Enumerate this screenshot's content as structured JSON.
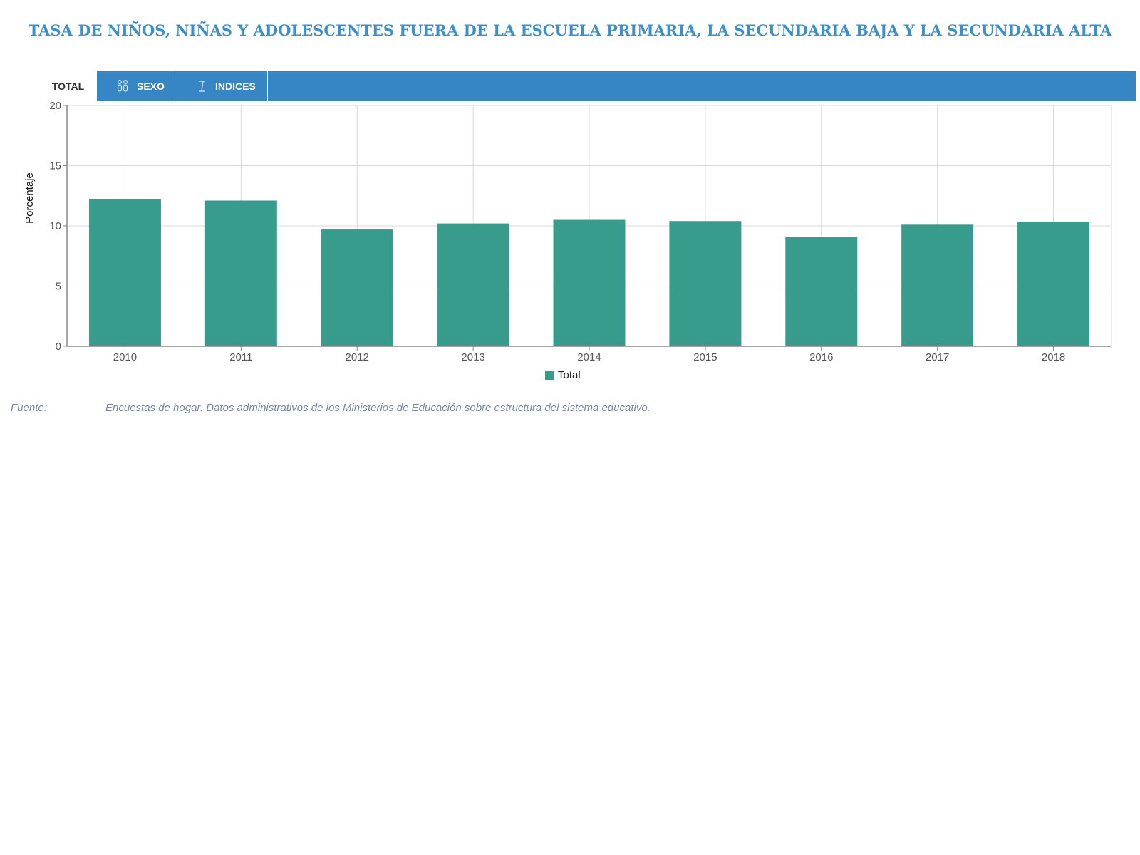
{
  "page": {
    "title": "TASA DE NIÑOS, NIÑAS Y ADOLESCENTES FUERA DE LA ESCUELA PRIMARIA, LA SECUNDARIA BAJA Y LA SECUNDARIA ALTA"
  },
  "tabs": {
    "total_label": "TOTAL",
    "sexo_label": "SEXO",
    "indices_label": "INDICES",
    "sexo_icon": "gender-icon",
    "indices_icon": "index-icon",
    "active": "TOTAL"
  },
  "colors": {
    "title": "#3d8fcb",
    "tabbar": "#3685c5",
    "bar": "#379c8b",
    "grid": "#d9d9d9",
    "axis": "#888888",
    "source": "#7a86a8"
  },
  "chart_data": {
    "type": "bar",
    "categories": [
      "2010",
      "2011",
      "2012",
      "2013",
      "2014",
      "2015",
      "2016",
      "2017",
      "2018"
    ],
    "series": [
      {
        "name": "Total",
        "values": [
          12.2,
          12.1,
          9.7,
          10.2,
          10.5,
          10.4,
          9.1,
          10.1,
          10.3
        ]
      }
    ],
    "ylabel": "Porcentaje",
    "xlabel": "",
    "ylim": [
      0,
      20
    ],
    "yticks": [
      "0",
      "5",
      "10",
      "15",
      "20"
    ],
    "grid": true,
    "legend_position": "bottom-center"
  },
  "legend": {
    "label": "Total"
  },
  "source": {
    "label": "Fuente:",
    "text": "Encuestas de hogar. Datos administrativos de los Ministerios de Educación sobre estructura del sistema educativo."
  }
}
